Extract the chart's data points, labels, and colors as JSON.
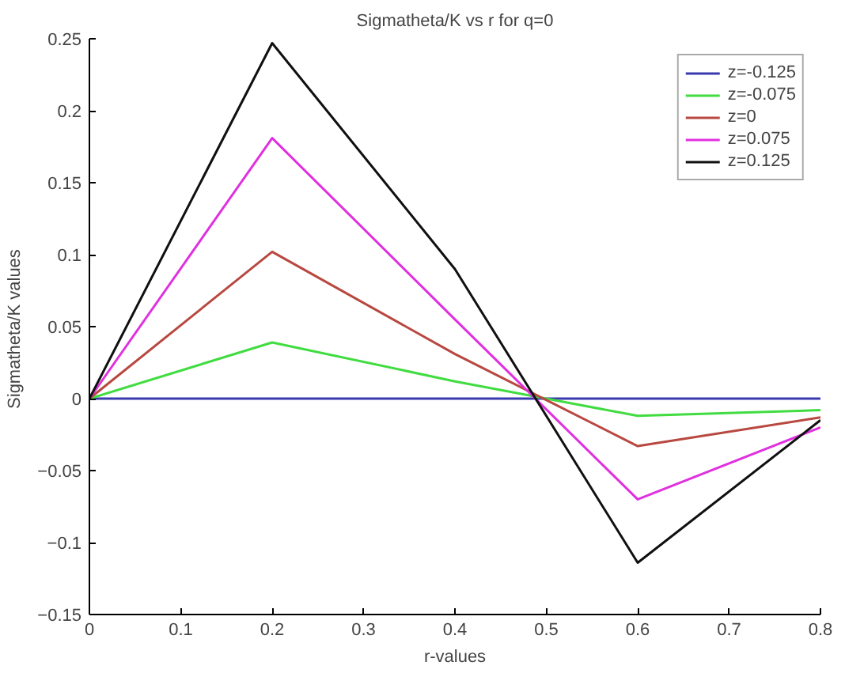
{
  "chart_data": {
    "type": "line",
    "title": "Sigmatheta/K vs r for q=0",
    "xlabel": "r-values",
    "ylabel": "Sigmatheta/K  values",
    "x": [
      0,
      0.2,
      0.4,
      0.6,
      0.8
    ],
    "series": [
      {
        "name": "z=-0.125",
        "color": "#3a3ab0",
        "values": [
          0,
          0,
          0,
          0,
          0
        ]
      },
      {
        "name": "z=-0.075",
        "color": "#40dc40",
        "values": [
          0,
          0.039,
          0.012,
          -0.012,
          -0.008
        ]
      },
      {
        "name": "z=0",
        "color": "#b84840",
        "values": [
          0,
          0.102,
          0.031,
          -0.033,
          -0.013
        ]
      },
      {
        "name": "z=0.075",
        "color": "#e030e0",
        "values": [
          0,
          0.181,
          0.055,
          -0.07,
          -0.02
        ]
      },
      {
        "name": "z=0.125",
        "color": "#101010",
        "values": [
          0,
          0.247,
          0.09,
          -0.114,
          -0.015
        ]
      }
    ],
    "xlim": [
      0,
      0.8
    ],
    "ylim": [
      -0.15,
      0.25
    ],
    "xticks": [
      0,
      0.1,
      0.2,
      0.3,
      0.4,
      0.5,
      0.6,
      0.7,
      0.8
    ],
    "yticks": [
      -0.15,
      -0.1,
      -0.05,
      0,
      0.05,
      0.1,
      0.15,
      0.2,
      0.25
    ],
    "grid": false,
    "legend": "top right",
    "marker": "none",
    "line_style": "solid"
  }
}
